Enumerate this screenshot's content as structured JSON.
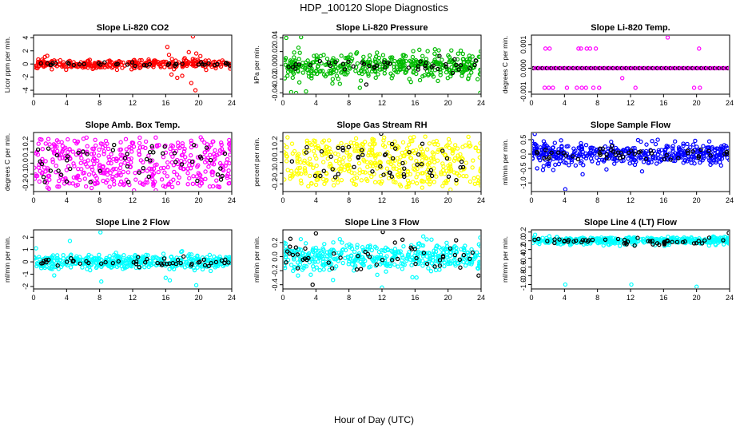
{
  "figure": {
    "title": "HDP_100120  Slope Diagnostics",
    "xlabel": "Hour of Day (UTC)",
    "x_ticks": [
      0,
      4,
      8,
      12,
      16,
      20,
      24
    ]
  },
  "chart_data": [
    {
      "type": "scatter",
      "title": "Slope Li-820 CO2",
      "ylabel": "Licor ppm per min.",
      "xlim": [
        0,
        24
      ],
      "ylim": [
        -4.6,
        4.4
      ],
      "yticks": [
        -4,
        -2,
        0,
        2,
        4
      ],
      "color": "#ff0000",
      "n_colored": 320,
      "n_black": 40,
      "sd_colored": 0.35,
      "sd_black": 0.15,
      "seed": 11,
      "outliers": [
        {
          "x": 16.2,
          "y": 2.6,
          "c": 1
        },
        {
          "x": 16.4,
          "y": 1.4,
          "c": 1
        },
        {
          "x": 16.7,
          "y": -1.6,
          "c": 1
        },
        {
          "x": 17.0,
          "y": -0.8,
          "c": 1
        },
        {
          "x": 17.4,
          "y": -2.1,
          "c": 1
        },
        {
          "x": 18.0,
          "y": -1.8,
          "c": 1
        },
        {
          "x": 18.3,
          "y": 0.9,
          "c": 1
        },
        {
          "x": 18.8,
          "y": 1.8,
          "c": 1
        },
        {
          "x": 19.1,
          "y": -2.9,
          "c": 1
        },
        {
          "x": 19.3,
          "y": 4.2,
          "c": 1
        },
        {
          "x": 19.6,
          "y": -4.0,
          "c": 1
        },
        {
          "x": 20.2,
          "y": 1.2,
          "c": 1
        },
        {
          "x": 20.9,
          "y": -0.9,
          "c": 1
        },
        {
          "x": 19.7,
          "y": 1.6,
          "c": 1
        }
      ]
    },
    {
      "type": "scatter",
      "title": "Slope Li-820 Pressure",
      "ylabel": "kPa per min.",
      "xlim": [
        0,
        24
      ],
      "ylim": [
        -0.042,
        0.044
      ],
      "yticks": [
        -0.04,
        -0.02,
        0.0,
        0.02,
        0.04
      ],
      "color": "#00bb00",
      "n_colored": 420,
      "n_black": 45,
      "sd_colored": 0.009,
      "sd_black": 0.004,
      "seed": 23,
      "outliers": [
        {
          "x": 0.4,
          "y": 0.04,
          "c": 1
        },
        {
          "x": 2.2,
          "y": 0.041,
          "c": 1
        },
        {
          "x": 1.0,
          "y": -0.039,
          "c": 1
        },
        {
          "x": 1.6,
          "y": -0.041,
          "c": 1
        },
        {
          "x": 2.8,
          "y": -0.038,
          "c": 1
        },
        {
          "x": 23.9,
          "y": -0.04,
          "c": 1
        },
        {
          "x": 10.1,
          "y": -0.028,
          "c": 0
        },
        {
          "x": 6.9,
          "y": -0.027,
          "c": 1
        }
      ]
    },
    {
      "type": "scatter",
      "title": "Slope Li-820 Temp.",
      "ylabel": "degrees C per min.",
      "xlim": [
        0,
        24
      ],
      "ylim": [
        -0.0011,
        0.0014
      ],
      "yticks": [
        -0.001,
        0.0,
        0.001
      ],
      "color": "#ff00ff",
      "n_colored": 0,
      "n_black": 0,
      "sd_colored": 0,
      "sd_black": 0,
      "seed": 37,
      "line_points": 90,
      "outliers": [
        {
          "x": 1.7,
          "y": 0.00083,
          "c": 1
        },
        {
          "x": 2.2,
          "y": 0.00083,
          "c": 1
        },
        {
          "x": 5.7,
          "y": 0.00083,
          "c": 1
        },
        {
          "x": 6.0,
          "y": 0.00083,
          "c": 1
        },
        {
          "x": 6.7,
          "y": 0.00083,
          "c": 1
        },
        {
          "x": 7.1,
          "y": 0.00083,
          "c": 1
        },
        {
          "x": 7.8,
          "y": 0.00083,
          "c": 1
        },
        {
          "x": 16.5,
          "y": 0.0013,
          "c": 1
        },
        {
          "x": 20.3,
          "y": 0.00083,
          "c": 1
        },
        {
          "x": 11.0,
          "y": -0.00042,
          "c": 1
        },
        {
          "x": 1.6,
          "y": -0.00083,
          "c": 1
        },
        {
          "x": 2.1,
          "y": -0.00083,
          "c": 1
        },
        {
          "x": 2.6,
          "y": -0.00083,
          "c": 1
        },
        {
          "x": 4.3,
          "y": -0.00083,
          "c": 1
        },
        {
          "x": 5.5,
          "y": -0.00083,
          "c": 1
        },
        {
          "x": 6.1,
          "y": -0.00083,
          "c": 1
        },
        {
          "x": 6.6,
          "y": -0.00083,
          "c": 1
        },
        {
          "x": 7.5,
          "y": -0.00083,
          "c": 1
        },
        {
          "x": 8.2,
          "y": -0.00083,
          "c": 1
        },
        {
          "x": 12.6,
          "y": -0.00083,
          "c": 1
        },
        {
          "x": 19.7,
          "y": -0.00083,
          "c": 1
        },
        {
          "x": 20.4,
          "y": -0.00083,
          "c": 1
        }
      ]
    },
    {
      "type": "scatter",
      "title": "Slope Amb. Box Temp.",
      "ylabel": "degrees C per min.",
      "xlim": [
        0,
        24
      ],
      "ylim": [
        -0.26,
        0.28
      ],
      "yticks": [
        -0.2,
        -0.1,
        0.0,
        0.1,
        0.2
      ],
      "color": "#ff00ff",
      "n_colored": 430,
      "n_black": 50,
      "sd_colored": 0.09,
      "sd_black": 0.08,
      "seed": 41,
      "uniform": 0.22,
      "outliers": []
    },
    {
      "type": "scatter",
      "title": "Slope Gas Stream RH",
      "ylabel": "percent per min.",
      "xlim": [
        0,
        24
      ],
      "ylim": [
        -0.27,
        0.28
      ],
      "yticks": [
        -0.2,
        -0.1,
        0.0,
        0.1,
        0.2
      ],
      "color": "#ffff00",
      "n_colored": 430,
      "n_black": 50,
      "sd_colored": 0.09,
      "sd_black": 0.08,
      "seed": 53,
      "uniform": 0.22,
      "outliers": [
        {
          "x": 11.9,
          "y": 0.27,
          "c": 0
        }
      ]
    },
    {
      "type": "scatter",
      "title": "Slope Sample Flow",
      "ylabel": "ml/min per min.",
      "xlim": [
        0,
        24
      ],
      "ylim": [
        -1.3,
        0.75
      ],
      "yticks": [
        -1.0,
        -0.5,
        0.0,
        0.5
      ],
      "color": "#0000ff",
      "n_colored": 430,
      "n_black": 50,
      "sd_colored": 0.17,
      "sd_black": 0.12,
      "seed": 67,
      "outliers": [
        {
          "x": 0.4,
          "y": 0.7,
          "c": 1
        },
        {
          "x": 4.1,
          "y": -1.22,
          "c": 1
        },
        {
          "x": 1.4,
          "y": -0.55,
          "c": 1
        },
        {
          "x": 6.2,
          "y": -0.7,
          "c": 1
        },
        {
          "x": 13.4,
          "y": -0.6,
          "c": 1
        },
        {
          "x": 15.3,
          "y": 0.5,
          "c": 1
        }
      ]
    },
    {
      "type": "scatter",
      "title": "Slope Line 2 Flow",
      "ylabel": "ml/min per min.",
      "xlim": [
        0,
        24
      ],
      "ylim": [
        -2.2,
        2.6
      ],
      "yticks": [
        -2,
        -1,
        0,
        1,
        2
      ],
      "color": "#00ffff",
      "n_colored": 420,
      "n_black": 50,
      "sd_colored": 0.28,
      "sd_black": 0.18,
      "seed": 79,
      "outliers": [
        {
          "x": 8.1,
          "y": 2.4,
          "c": 1
        },
        {
          "x": 4.4,
          "y": 1.7,
          "c": 1
        },
        {
          "x": 0.3,
          "y": 1.1,
          "c": 1
        },
        {
          "x": 8.2,
          "y": -1.6,
          "c": 1
        },
        {
          "x": 16.0,
          "y": -1.3,
          "c": 1
        },
        {
          "x": 16.5,
          "y": -1.5,
          "c": 1
        },
        {
          "x": 19.7,
          "y": -1.9,
          "c": 1
        },
        {
          "x": 2.5,
          "y": -1.1,
          "c": 1
        }
      ]
    },
    {
      "type": "scatter",
      "title": "Slope Line 3 Flow",
      "ylabel": "ml/min per min.",
      "xlim": [
        0,
        24
      ],
      "ylim": [
        -0.46,
        0.38
      ],
      "yticks": [
        -0.4,
        -0.2,
        0.0,
        0.2
      ],
      "color": "#00ffff",
      "n_colored": 430,
      "n_black": 50,
      "sd_colored": 0.1,
      "sd_black": 0.12,
      "seed": 83,
      "outliers": [
        {
          "x": 3.6,
          "y": -0.4,
          "c": 0
        },
        {
          "x": 12.0,
          "y": -0.44,
          "c": 1
        },
        {
          "x": 12.1,
          "y": 0.35,
          "c": 0
        },
        {
          "x": 4.0,
          "y": 0.33,
          "c": 0
        },
        {
          "x": 23.9,
          "y": 0.27,
          "c": 1
        },
        {
          "x": 23.7,
          "y": -0.27,
          "c": 0
        }
      ]
    },
    {
      "type": "scatter",
      "title": "Slope Line 4 (LT) Flow",
      "ylabel": "ml/min per min.",
      "xlim": [
        0,
        24
      ],
      "ylim": [
        -1.1,
        0.25
      ],
      "yticks": [
        -1.0,
        -0.8,
        -0.6,
        -0.4,
        -0.2,
        0.0,
        0.2
      ],
      "color": "#00ffff",
      "n_colored": 420,
      "n_black": 50,
      "sd_colored": 0.045,
      "sd_black": 0.045,
      "seed": 97,
      "outliers": [
        {
          "x": 4.1,
          "y": -1.0,
          "c": 1
        },
        {
          "x": 12.1,
          "y": -1.0,
          "c": 1
        },
        {
          "x": 20.0,
          "y": -1.05,
          "c": 1
        },
        {
          "x": 23.9,
          "y": 0.18,
          "c": 0
        }
      ]
    }
  ]
}
